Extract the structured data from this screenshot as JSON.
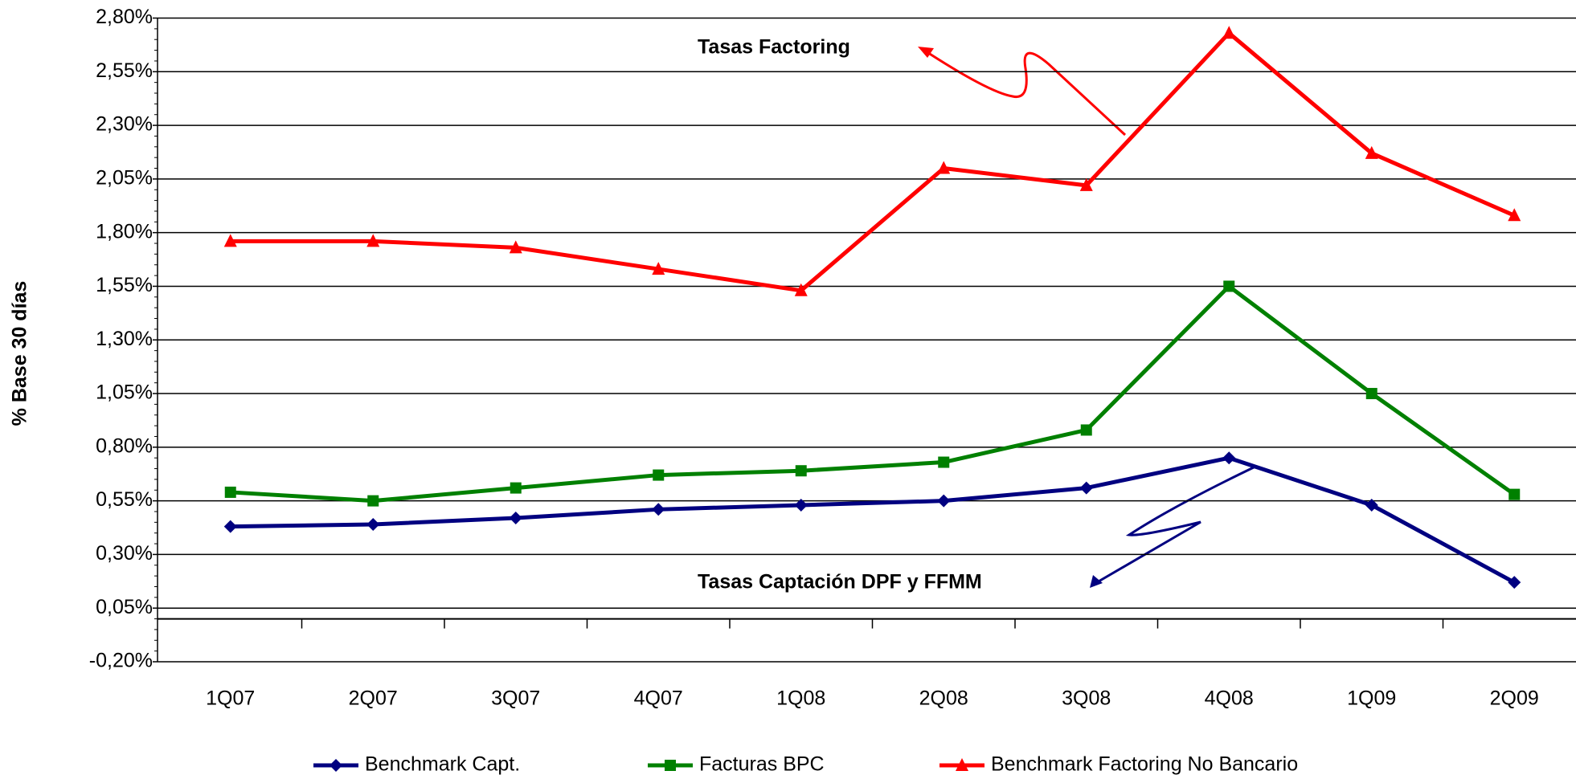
{
  "chart_data": {
    "type": "line",
    "y_label": "% Base 30 días",
    "categories": [
      "1Q07",
      "2Q07",
      "3Q07",
      "4Q07",
      "1Q08",
      "2Q08",
      "3Q08",
      "4Q08",
      "1Q09",
      "2Q09"
    ],
    "series": [
      {
        "name": "Benchmark Capt.",
        "color": "#000080",
        "marker": "diamond",
        "values": [
          0.43,
          0.44,
          0.47,
          0.51,
          0.53,
          0.55,
          0.61,
          0.75,
          0.53,
          0.17
        ]
      },
      {
        "name": "Facturas BPC",
        "color": "#008000",
        "marker": "square",
        "values": [
          0.59,
          0.55,
          0.61,
          0.67,
          0.69,
          0.73,
          0.88,
          1.55,
          1.05,
          0.58
        ]
      },
      {
        "name": "Benchmark Factoring No Bancario",
        "color": "#ff0000",
        "marker": "triangle",
        "values": [
          1.76,
          1.76,
          1.73,
          1.63,
          1.53,
          2.1,
          2.02,
          2.73,
          2.17,
          1.88
        ]
      }
    ],
    "ylim": [
      -0.2,
      2.8
    ],
    "yticks": [
      {
        "value": -0.2,
        "label": "-0,20%"
      },
      {
        "value": 0.05,
        "label": "0,05%"
      },
      {
        "value": 0.3,
        "label": "0,30%"
      },
      {
        "value": 0.55,
        "label": "0,55%"
      },
      {
        "value": 0.8,
        "label": "0,80%"
      },
      {
        "value": 1.05,
        "label": "1,05%"
      },
      {
        "value": 1.3,
        "label": "1,30%"
      },
      {
        "value": 1.55,
        "label": "1,55%"
      },
      {
        "value": 1.8,
        "label": "1,80%"
      },
      {
        "value": 2.05,
        "label": "2,05%"
      },
      {
        "value": 2.3,
        "label": "2,30%"
      },
      {
        "value": 2.55,
        "label": "2,55%"
      },
      {
        "value": 2.8,
        "label": "2,80%"
      }
    ],
    "grid": true,
    "legend": "bottom",
    "annotations": [
      "Tasas Factoring",
      "Tasas Captación DPF y FFMM"
    ]
  }
}
